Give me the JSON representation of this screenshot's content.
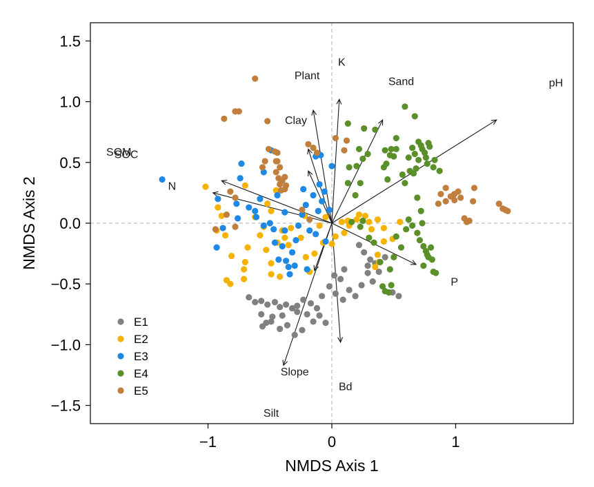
{
  "chart_data": {
    "type": "scatter",
    "title": "",
    "xlabel": "NMDS Axis 1",
    "ylabel": "NMDS Axis 2",
    "xlim": [
      -1.95,
      1.95
    ],
    "ylim": [
      -1.65,
      1.65
    ],
    "x_ticks": [
      -1,
      0,
      1
    ],
    "x_tick_labels": [
      "−1",
      "0",
      "1"
    ],
    "y_ticks": [
      -1.5,
      -1.0,
      -0.5,
      0.0,
      0.5,
      1.0,
      1.5
    ],
    "y_tick_labels": [
      "−1.5",
      "−1.0",
      "−0.5",
      "0.0",
      "0.5",
      "1.0",
      "1.5"
    ],
    "reference_lines": {
      "x": 0,
      "y": 0,
      "style": "dashed"
    },
    "legend_position": "bottom-left",
    "series": [
      {
        "name": "E1",
        "color": "#808080",
        "points": [
          [
            -0.67,
            -0.61
          ],
          [
            -0.62,
            -0.65
          ],
          [
            -0.57,
            -0.64
          ],
          [
            -0.52,
            -0.67
          ],
          [
            -0.46,
            -0.65
          ],
          [
            -0.42,
            -0.69
          ],
          [
            -0.37,
            -0.67
          ],
          [
            -0.32,
            -0.7
          ],
          [
            -0.28,
            -0.68
          ],
          [
            -0.23,
            -0.63
          ],
          [
            -0.17,
            -0.66
          ],
          [
            -0.12,
            -0.7
          ],
          [
            -0.57,
            -0.75
          ],
          [
            -0.53,
            -0.82
          ],
          [
            -0.48,
            -0.77
          ],
          [
            -0.42,
            -0.87
          ],
          [
            -0.36,
            -0.84
          ],
          [
            -0.3,
            -0.92
          ],
          [
            -0.24,
            -0.88
          ],
          [
            -0.2,
            -0.75
          ],
          [
            -0.15,
            -0.81
          ],
          [
            -0.1,
            -0.76
          ],
          [
            -0.05,
            -0.82
          ],
          [
            -0.56,
            -0.85
          ],
          [
            -0.49,
            -0.81
          ],
          [
            -0.4,
            -0.76
          ],
          [
            -0.28,
            -0.73
          ],
          [
            -0.08,
            -0.6
          ],
          [
            -0.02,
            -0.52
          ],
          [
            0.03,
            -0.58
          ],
          [
            0.07,
            -0.46
          ],
          [
            0.02,
            -0.43
          ],
          [
            0.09,
            -0.63
          ],
          [
            0.14,
            -0.55
          ],
          [
            0.19,
            -0.6
          ],
          [
            0.24,
            -0.51
          ],
          [
            0.29,
            -0.41
          ],
          [
            0.33,
            -0.48
          ],
          [
            0.38,
            -0.4
          ],
          [
            0.43,
            -0.28
          ],
          [
            0.26,
            -0.24
          ],
          [
            0.31,
            -0.3
          ],
          [
            0.22,
            -0.18
          ],
          [
            0.35,
            -0.33
          ],
          [
            0.49,
            -0.57
          ],
          [
            0.54,
            -0.6
          ],
          [
            0.29,
            -0.35
          ],
          [
            0.1,
            -0.38
          ]
        ]
      },
      {
        "name": "E2",
        "color": "#f5b200",
        "points": [
          [
            -1.02,
            0.3
          ],
          [
            -0.92,
            0.13
          ],
          [
            -0.89,
            0.06
          ],
          [
            -0.93,
            -0.06
          ],
          [
            -0.86,
            -0.1
          ],
          [
            -0.81,
            -0.27
          ],
          [
            -0.85,
            -0.47
          ],
          [
            -0.82,
            -0.5
          ],
          [
            -0.71,
            -0.46
          ],
          [
            -0.7,
            -0.32
          ],
          [
            -0.71,
            -0.38
          ],
          [
            -0.68,
            -0.2
          ],
          [
            -0.7,
            0.31
          ],
          [
            -0.62,
            0.05
          ],
          [
            -0.58,
            -0.1
          ],
          [
            -0.55,
            -0.03
          ],
          [
            -0.53,
            -0.22
          ],
          [
            -0.49,
            0.1
          ],
          [
            -0.52,
            0.16
          ],
          [
            -0.45,
            0.27
          ],
          [
            -0.44,
            -0.16
          ],
          [
            -0.49,
            -0.33
          ],
          [
            -0.49,
            -0.42
          ],
          [
            -0.42,
            -0.44
          ],
          [
            -0.38,
            -0.12
          ],
          [
            -0.35,
            -0.18
          ],
          [
            -0.4,
            -0.06
          ],
          [
            -0.33,
            -0.04
          ],
          [
            -0.25,
            -0.12
          ],
          [
            -0.22,
            0.06
          ],
          [
            -0.21,
            -0.28
          ],
          [
            -0.18,
            -0.4
          ],
          [
            -0.14,
            -0.25
          ],
          [
            -0.1,
            -0.02
          ],
          [
            -0.07,
            -0.16
          ],
          [
            -0.05,
            0.05
          ],
          [
            0.0,
            -0.17
          ],
          [
            0.03,
            -0.11
          ],
          [
            0.1,
            -0.08
          ],
          [
            0.14,
            -0.02
          ],
          [
            0.2,
            0.03
          ],
          [
            0.22,
            0.07
          ],
          [
            0.27,
            0.06
          ],
          [
            0.3,
            0.01
          ],
          [
            0.32,
            -0.05
          ],
          [
            0.37,
            0.03
          ],
          [
            0.42,
            -0.04
          ],
          [
            0.49,
            -0.13
          ],
          [
            0.55,
            0.01
          ],
          [
            0.37,
            -0.26
          ],
          [
            0.35,
            -0.36
          ],
          [
            0.38,
            -0.32
          ],
          [
            0.42,
            -0.15
          ],
          [
            0.08,
            0.01
          ],
          [
            0.13,
            0.02
          ]
        ]
      },
      {
        "name": "E3",
        "color": "#1e88e5",
        "points": [
          [
            -1.37,
            0.36
          ],
          [
            -0.92,
            0.2
          ],
          [
            -0.88,
            -0.04
          ],
          [
            -0.93,
            -0.2
          ],
          [
            -0.77,
            0.16
          ],
          [
            -0.76,
            0.04
          ],
          [
            -0.74,
            0.37
          ],
          [
            -0.73,
            0.49
          ],
          [
            -0.67,
            0.13
          ],
          [
            -0.62,
            0.1
          ],
          [
            -0.61,
            0.05
          ],
          [
            -0.58,
            0.2
          ],
          [
            -0.55,
            -0.02
          ],
          [
            -0.55,
            0.42
          ],
          [
            -0.5,
            0.0
          ],
          [
            -0.49,
            0.6
          ],
          [
            -0.47,
            -0.05
          ],
          [
            -0.46,
            -0.16
          ],
          [
            -0.44,
            0.23
          ],
          [
            -0.43,
            -0.3
          ],
          [
            -0.4,
            -0.19
          ],
          [
            -0.38,
            0.09
          ],
          [
            -0.38,
            -0.06
          ],
          [
            -0.37,
            -0.31
          ],
          [
            -0.35,
            -0.36
          ],
          [
            -0.34,
            -0.42
          ],
          [
            -0.32,
            -0.24
          ],
          [
            -0.3,
            -0.35
          ],
          [
            -0.29,
            -0.14
          ],
          [
            -0.27,
            -0.02
          ],
          [
            -0.24,
            0.07
          ],
          [
            -0.23,
            0.28
          ],
          [
            -0.21,
            0.15
          ],
          [
            -0.2,
            -0.38
          ],
          [
            -0.18,
            -0.06
          ],
          [
            -0.15,
            0.23
          ],
          [
            -0.13,
            -0.09
          ],
          [
            -0.11,
            0.1
          ],
          [
            -0.1,
            0.32
          ],
          [
            -0.08,
            0.18
          ],
          [
            -0.06,
            0.26
          ],
          [
            -0.05,
            -0.15
          ],
          [
            -0.02,
            0.11
          ],
          [
            0.0,
            0.47
          ],
          [
            -0.13,
            0.55
          ],
          [
            -0.09,
            0.56
          ]
        ]
      },
      {
        "name": "E4",
        "color": "#5a8f29",
        "points": [
          [
            0.13,
            0.82
          ],
          [
            0.26,
            0.78
          ],
          [
            0.35,
            0.77
          ],
          [
            0.22,
            0.61
          ],
          [
            0.25,
            0.53
          ],
          [
            0.29,
            0.57
          ],
          [
            0.2,
            0.47
          ],
          [
            0.14,
            0.46
          ],
          [
            0.43,
            0.6
          ],
          [
            0.48,
            0.61
          ],
          [
            0.52,
            0.61
          ],
          [
            0.5,
            0.55
          ],
          [
            0.47,
            0.56
          ],
          [
            0.52,
            0.7
          ],
          [
            0.44,
            0.49
          ],
          [
            0.45,
            0.36
          ],
          [
            0.42,
            0.46
          ],
          [
            0.57,
            0.4
          ],
          [
            0.59,
            0.33
          ],
          [
            0.63,
            0.43
          ],
          [
            0.66,
            0.41
          ],
          [
            0.67,
            0.57
          ],
          [
            0.68,
            0.45
          ],
          [
            0.7,
            0.52
          ],
          [
            0.73,
            0.61
          ],
          [
            0.75,
            0.58
          ],
          [
            0.77,
            0.49
          ],
          [
            0.79,
            0.63
          ],
          [
            0.82,
            0.46
          ],
          [
            0.87,
            0.43
          ],
          [
            0.65,
            0.62
          ],
          [
            0.62,
            0.54
          ],
          [
            0.7,
            0.67
          ],
          [
            0.72,
            0.64
          ],
          [
            0.76,
            0.54
          ],
          [
            0.59,
            0.96
          ],
          [
            0.67,
            0.88
          ],
          [
            0.78,
            0.66
          ],
          [
            0.83,
            0.52
          ],
          [
            0.69,
            0.21
          ],
          [
            0.72,
            0.1
          ],
          [
            0.73,
            0.0
          ],
          [
            0.65,
            -0.02
          ],
          [
            0.69,
            -0.08
          ],
          [
            0.71,
            -0.14
          ],
          [
            0.74,
            -0.19
          ],
          [
            0.76,
            -0.23
          ],
          [
            0.78,
            -0.28
          ],
          [
            0.8,
            -0.2
          ],
          [
            0.81,
            -0.3
          ],
          [
            0.82,
            -0.4
          ],
          [
            0.84,
            -0.41
          ],
          [
            0.74,
            -0.35
          ],
          [
            0.77,
            -0.26
          ],
          [
            0.62,
            0.03
          ],
          [
            0.6,
            -0.05
          ],
          [
            0.52,
            -0.11
          ],
          [
            0.5,
            -0.28
          ],
          [
            0.47,
            -0.38
          ],
          [
            0.41,
            -0.52
          ],
          [
            0.43,
            -0.56
          ],
          [
            0.46,
            -0.57
          ],
          [
            0.48,
            -0.51
          ],
          [
            0.39,
            -0.32
          ],
          [
            0.34,
            -0.16
          ],
          [
            0.3,
            -0.12
          ],
          [
            0.25,
            0.02
          ],
          [
            0.23,
            -0.03
          ],
          [
            0.16,
            0.01
          ],
          [
            0.19,
            0.23
          ],
          [
            0.23,
            0.33
          ],
          [
            0.13,
            0.33
          ],
          [
            0.56,
            -0.2
          ]
        ]
      },
      {
        "name": "E5",
        "color": "#c17f3e",
        "points": [
          [
            -0.62,
            1.19
          ],
          [
            -0.87,
            0.86
          ],
          [
            -0.78,
            0.92
          ],
          [
            -0.75,
            0.92
          ],
          [
            -0.52,
            0.84
          ],
          [
            -0.51,
            0.61
          ],
          [
            -0.46,
            0.59
          ],
          [
            -0.44,
            0.51
          ],
          [
            -0.42,
            0.46
          ],
          [
            -0.45,
            0.42
          ],
          [
            -0.4,
            0.35
          ],
          [
            -0.43,
            0.37
          ],
          [
            -0.42,
            0.32
          ],
          [
            -0.41,
            0.27
          ],
          [
            -0.37,
            0.31
          ],
          [
            -0.38,
            0.28
          ],
          [
            -0.54,
            0.51
          ],
          [
            -0.38,
            0.38
          ],
          [
            -0.45,
            0.51
          ],
          [
            -0.44,
            0.58
          ],
          [
            -0.56,
            0.46
          ],
          [
            -0.78,
            0.21
          ],
          [
            -0.82,
            0.26
          ],
          [
            -0.85,
            0.07
          ],
          [
            -0.94,
            -0.05
          ],
          [
            -0.78,
            -0.03
          ],
          [
            -0.19,
            0.65
          ],
          [
            -0.15,
            0.62
          ],
          [
            -0.12,
            0.58
          ],
          [
            0.03,
            0.7
          ],
          [
            0.12,
            0.68
          ],
          [
            0.1,
            0.6
          ],
          [
            -0.24,
            0.11
          ],
          [
            -0.18,
            0.03
          ],
          [
            0.92,
            0.18
          ],
          [
            0.96,
            0.22
          ],
          [
            0.99,
            0.24
          ],
          [
            1.02,
            0.26
          ],
          [
            0.99,
            0.19
          ],
          [
            1.04,
            0.21
          ],
          [
            0.92,
            0.29
          ],
          [
            0.88,
            0.24
          ],
          [
            0.86,
            0.16
          ],
          [
            1.07,
            0.04
          ],
          [
            1.09,
            0.01
          ],
          [
            1.11,
            0.02
          ],
          [
            1.14,
            0.18
          ],
          [
            1.15,
            0.29
          ],
          [
            1.35,
            0.16
          ],
          [
            1.38,
            0.12
          ],
          [
            1.4,
            0.11
          ],
          [
            1.42,
            0.1
          ]
        ]
      }
    ],
    "vectors": [
      {
        "label": "pH",
        "x": 1.33,
        "y": 0.85
      },
      {
        "label": "Sand",
        "x": 0.41,
        "y": 0.85
      },
      {
        "label": "K",
        "x": 0.06,
        "y": 1.02
      },
      {
        "label": "Plant",
        "x": -0.15,
        "y": 0.93
      },
      {
        "label": "Clay",
        "x": -0.19,
        "y": 0.61
      },
      {
        "label": "SOM",
        "x": -0.89,
        "y": 0.35
      },
      {
        "label": "SOC",
        "x": -0.96,
        "y": 0.25
      },
      {
        "label": "N",
        "x": -0.19,
        "y": 0.43
      },
      {
        "label": "P",
        "x": 0.68,
        "y": -0.34
      },
      {
        "label": "Bd",
        "x": 0.07,
        "y": -0.98
      },
      {
        "label": "Slope",
        "x": -0.39,
        "y": -1.17
      },
      {
        "label": "Silt",
        "x": -0.14,
        "y": -0.39
      }
    ],
    "vector_labels": [
      {
        "label": "pH",
        "x": 1.81,
        "y": 1.16
      },
      {
        "label": "Sand",
        "x": 0.56,
        "y": 1.17
      },
      {
        "label": "K",
        "x": 0.08,
        "y": 1.33
      },
      {
        "label": "Plant",
        "x": -0.2,
        "y": 1.22
      },
      {
        "label": "Clay",
        "x": -0.29,
        "y": 0.85
      },
      {
        "label": "SOM",
        "x": -1.72,
        "y": 0.59
      },
      {
        "label": "SOC",
        "x": -1.66,
        "y": 0.57
      },
      {
        "label": "N",
        "x": -1.29,
        "y": 0.31
      },
      {
        "label": "P",
        "x": 0.99,
        "y": -0.48
      },
      {
        "label": "Bd",
        "x": 0.11,
        "y": -1.34
      },
      {
        "label": "Slope",
        "x": -0.3,
        "y": -1.22
      },
      {
        "label": "Silt",
        "x": -0.49,
        "y": -1.56
      }
    ]
  }
}
